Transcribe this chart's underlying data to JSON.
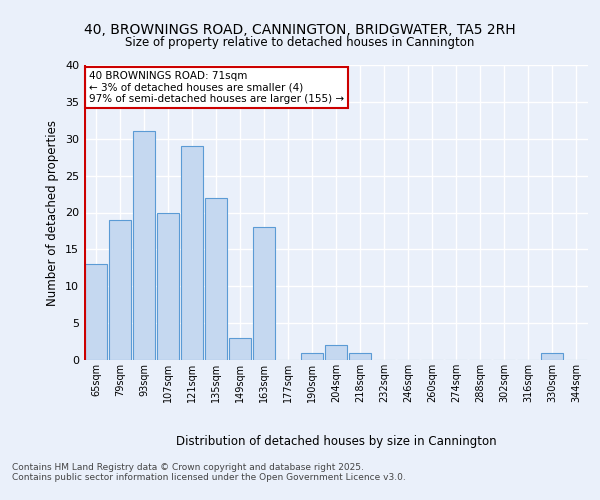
{
  "title_line1": "40, BROWNINGS ROAD, CANNINGTON, BRIDGWATER, TA5 2RH",
  "title_line2": "Size of property relative to detached houses in Cannington",
  "xlabel": "Distribution of detached houses by size in Cannington",
  "ylabel": "Number of detached properties",
  "categories": [
    "65sqm",
    "79sqm",
    "93sqm",
    "107sqm",
    "121sqm",
    "135sqm",
    "149sqm",
    "163sqm",
    "177sqm",
    "190sqm",
    "204sqm",
    "218sqm",
    "232sqm",
    "246sqm",
    "260sqm",
    "274sqm",
    "288sqm",
    "302sqm",
    "316sqm",
    "330sqm",
    "344sqm"
  ],
  "values": [
    13,
    19,
    31,
    20,
    29,
    22,
    3,
    18,
    0,
    1,
    2,
    1,
    0,
    0,
    0,
    0,
    0,
    0,
    0,
    1,
    0
  ],
  "bar_color": "#c5d8f0",
  "bar_edge_color": "#5b9bd5",
  "highlight_line_color": "#cc0000",
  "annotation_text": "40 BROWNINGS ROAD: 71sqm\n← 3% of detached houses are smaller (4)\n97% of semi-detached houses are larger (155) →",
  "annotation_box_color": "#ffffff",
  "annotation_box_edge_color": "#cc0000",
  "ylim": [
    0,
    40
  ],
  "yticks": [
    0,
    5,
    10,
    15,
    20,
    25,
    30,
    35,
    40
  ],
  "background_color": "#eaf0fa",
  "grid_color": "#ffffff",
  "fig_background_color": "#eaf0fa",
  "footer_line1": "Contains HM Land Registry data © Crown copyright and database right 2025.",
  "footer_line2": "Contains public sector information licensed under the Open Government Licence v3.0."
}
